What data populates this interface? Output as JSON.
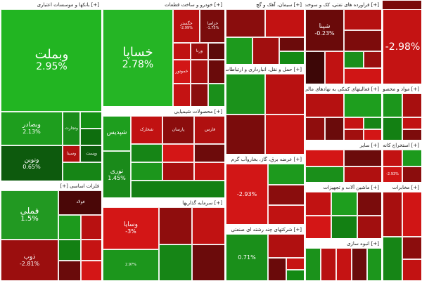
{
  "sectors": [
    {
      "label": "[+] بانکها و موسسات اعتباری",
      "tiles": [
        {
          "name": "وبملت",
          "change": "2.95%",
          "color": "#22b522",
          "size": "xl"
        },
        {
          "name": "وبصادر",
          "change": "2.13%",
          "color": "#1e9e1e",
          "size": "md"
        },
        {
          "name": "وتجارت",
          "change": "",
          "color": "#1a8c1a",
          "size": "sm"
        },
        {
          "name": "",
          "change": "",
          "color": "#149014",
          "size": "sm"
        },
        {
          "name": "",
          "change": "",
          "color": "#0e6e0e",
          "size": "sm"
        },
        {
          "name": "وپست",
          "change": "",
          "color": "#0c5c0c",
          "size": "sm"
        },
        {
          "name": "ونوین",
          "change": "0.65%",
          "color": "#0d5a0d",
          "size": "md"
        },
        {
          "name": "وسینا",
          "change": "",
          "color": "#b01010",
          "size": "sm"
        },
        {
          "name": "",
          "change": "",
          "color": "#168516",
          "size": "sm"
        }
      ]
    },
    {
      "label": "[+] خودرو و ساخت قطعات",
      "tiles": [
        {
          "name": "خساپا",
          "change": "2.78%",
          "color": "#25b525",
          "size": "xl"
        },
        {
          "name": "خگستر",
          "change": "-2.99%",
          "color": "#b81010",
          "size": "sm"
        },
        {
          "name": "خزامیا",
          "change": "-1.75%",
          "color": "#7a0c0c",
          "size": "sm"
        },
        {
          "name": "",
          "change": "",
          "color": "#c01212",
          "size": "sm"
        },
        {
          "name": "ورنا",
          "change": "",
          "color": "#9a0e0e",
          "size": "sm"
        },
        {
          "name": "",
          "change": "",
          "color": "#5c0a0a",
          "size": "sm"
        },
        {
          "name": "خموتور",
          "change": "",
          "color": "#d21616",
          "size": "sm"
        },
        {
          "name": "",
          "change": "",
          "color": "#a80f0f",
          "size": "sm"
        },
        {
          "name": "",
          "change": "",
          "color": "#6a0b0b",
          "size": "sm"
        },
        {
          "name": "",
          "change": "",
          "color": "#c41313",
          "size": "sm"
        },
        {
          "name": "",
          "change": "",
          "color": "#8b0d0d",
          "size": "sm"
        },
        {
          "name": "",
          "change": "",
          "color": "#1a8f1a",
          "size": "sm"
        }
      ]
    },
    {
      "label": "[+] سیمان، آهک و گچ",
      "tiles": [
        {
          "name": "",
          "change": "",
          "color": "#8a0d0d",
          "size": "sm"
        },
        {
          "name": "",
          "change": "",
          "color": "#c21212",
          "size": "sm"
        },
        {
          "name": "",
          "change": "",
          "color": "#1d9a1d",
          "size": "sm"
        },
        {
          "name": "",
          "change": "",
          "color": "#a10f0f",
          "size": "sm"
        },
        {
          "name": "",
          "change": "",
          "color": "#6b0b0b",
          "size": "sm"
        },
        {
          "name": "",
          "change": "",
          "color": "#148a14",
          "size": "sm"
        }
      ]
    },
    {
      "label": "[+] فراورده های نفتی، کک و سوخت هسته ای",
      "tiles": [
        {
          "name": "شپنا",
          "change": "-0.23%",
          "color": "#6a0a0a",
          "size": "md"
        },
        {
          "name": "",
          "change": "",
          "color": "#b51111",
          "size": "sm"
        },
        {
          "name": "",
          "change": "",
          "color": "#7d0c0c",
          "size": "sm"
        },
        {
          "name": "",
          "change": "",
          "color": "#3d0707",
          "size": "sm"
        },
        {
          "name": "",
          "change": "",
          "color": "#c01212",
          "size": "sm"
        },
        {
          "name": "",
          "change": "",
          "color": "#1a8f1a",
          "size": "sm"
        },
        {
          "name": "",
          "change": "",
          "color": "#9a0e0e",
          "size": "sm"
        },
        {
          "name": "",
          "change": "",
          "color": "#d01515",
          "size": "sm"
        }
      ]
    },
    {
      "label": "[+] محصولات شیمیایی",
      "tiles": [
        {
          "name": "شپدیس",
          "change": "",
          "color": "#1e9e1e",
          "size": "md"
        },
        {
          "name": "نوری",
          "change": "1.45%",
          "color": "#1a8a1a",
          "size": "md"
        },
        {
          "name": "شخارک",
          "change": "",
          "color": "#c11212",
          "size": "sm"
        },
        {
          "name": "پارسان",
          "change": "",
          "color": "#8b0d0d",
          "size": "sm"
        },
        {
          "name": "فارس",
          "change": "",
          "color": "#b01010",
          "size": "sm"
        },
        {
          "name": "",
          "change": "",
          "color": "#168516",
          "size": "sm"
        },
        {
          "name": "",
          "change": "",
          "color": "#d41616",
          "size": "sm"
        },
        {
          "name": "",
          "change": "",
          "color": "#6d0b0b",
          "size": "sm"
        },
        {
          "name": "",
          "change": "",
          "color": "#1c961c",
          "size": "sm"
        },
        {
          "name": "",
          "change": "",
          "color": "#a70f0f",
          "size": "sm"
        },
        {
          "name": "",
          "change": "",
          "color": "#c51313",
          "size": "sm"
        },
        {
          "name": "",
          "change": "",
          "color": "#138013",
          "size": "sm"
        }
      ]
    },
    {
      "label": "[+] حمل و نقل، انبارداری و ارتباطات",
      "tiles": [
        {
          "name": "",
          "change": "",
          "color": "#1b921b",
          "size": "sm"
        },
        {
          "name": "",
          "change": "",
          "color": "#b81111",
          "size": "sm"
        },
        {
          "name": "",
          "change": "",
          "color": "#7a0c0c",
          "size": "sm"
        },
        {
          "name": "",
          "change": "",
          "color": "#c71414",
          "size": "sm"
        }
      ]
    },
    {
      "label": "[+] فعالیتهای کمکی به نهادهای مالی",
      "tiles": [
        {
          "name": "",
          "change": "",
          "color": "#b51111",
          "size": "sm"
        },
        {
          "name": "",
          "change": "",
          "color": "#1e9e1e",
          "size": "sm"
        },
        {
          "name": "",
          "change": "",
          "color": "#8f0d0d",
          "size": "sm"
        },
        {
          "name": "",
          "change": "",
          "color": "#6a0b0b",
          "size": "sm"
        },
        {
          "name": "",
          "change": "",
          "color": "#c51313",
          "size": "sm"
        },
        {
          "name": "",
          "change": "",
          "color": "#168516",
          "size": "sm"
        },
        {
          "name": "",
          "change": "",
          "color": "#a10f0f",
          "size": "sm"
        },
        {
          "name": "",
          "change": "",
          "color": "#d31616",
          "size": "sm"
        }
      ]
    },
    {
      "label": "[+] مواد و محصولات دارویی",
      "tiles": [
        {
          "name": "",
          "change": "",
          "color": "#1c961c",
          "size": "sm"
        },
        {
          "name": "",
          "change": "",
          "color": "#a70f0f",
          "size": "sm"
        },
        {
          "name": "",
          "change": "",
          "color": "#138013",
          "size": "sm"
        },
        {
          "name": "",
          "change": "",
          "color": "#c11212",
          "size": "sm"
        },
        {
          "name": "",
          "change": "",
          "color": "#7d0c0c",
          "size": "sm"
        }
      ]
    },
    {
      "label": "[+] سایر",
      "tiles": [
        {
          "name": "",
          "change": "",
          "color": "#d41616",
          "size": "sm"
        },
        {
          "name": "",
          "change": "",
          "color": "#6b0b0b",
          "size": "sm"
        },
        {
          "name": "",
          "change": "",
          "color": "#1a8f1a",
          "size": "sm"
        },
        {
          "name": "",
          "change": "",
          "color": "#b01010",
          "size": "sm"
        }
      ]
    },
    {
      "label": "[+] استخراج کانه های فلزی",
      "tiles": [
        {
          "name": "",
          "change": "",
          "color": "#c21212",
          "size": "sm"
        },
        {
          "name": "",
          "change": "",
          "color": "#1d9a1d",
          "size": "sm"
        },
        {
          "name": "",
          "change": "-2.93%",
          "color": "#d01515",
          "size": "sm"
        },
        {
          "name": "",
          "change": "",
          "color": "#8b0d0d",
          "size": "sm"
        }
      ]
    },
    {
      "label": "فلزات اساسی [+]",
      "tiles": [
        {
          "name": "فملی",
          "change": "1.5%",
          "color": "#229922",
          "size": "lg"
        },
        {
          "name": "فولاد",
          "change": "",
          "color": "#4a0707",
          "size": "sm"
        },
        {
          "name": "ذوب",
          "change": "-2.81%",
          "color": "#9b0e0e",
          "size": "md"
        },
        {
          "name": "",
          "change": "",
          "color": "#1d9a1d",
          "size": "sm"
        },
        {
          "name": "",
          "change": "",
          "color": "#b81111",
          "size": "sm"
        },
        {
          "name": "",
          "change": "",
          "color": "#138013",
          "size": "sm"
        },
        {
          "name": "",
          "change": "",
          "color": "#c51313",
          "size": "sm"
        },
        {
          "name": "",
          "change": "",
          "color": "#6a0b0b",
          "size": "sm"
        },
        {
          "name": "",
          "change": "",
          "color": "#d41616",
          "size": "sm"
        },
        {
          "name": "",
          "change": "",
          "color": "#1b921b",
          "size": "sm"
        }
      ]
    },
    {
      "label": "[+] سرمایه گذاریها",
      "tiles": [
        {
          "name": "وسایا",
          "change": "-3%",
          "color": "#d31616",
          "size": "md"
        },
        {
          "name": "",
          "change": "2.97%",
          "color": "#1c961c",
          "size": "sm"
        },
        {
          "name": "",
          "change": "",
          "color": "#8f0d0d",
          "size": "sm"
        },
        {
          "name": "",
          "change": "",
          "color": "#c11212",
          "size": "sm"
        },
        {
          "name": "",
          "change": "",
          "color": "#168516",
          "size": "sm"
        },
        {
          "name": "",
          "change": "",
          "color": "#6b0b0b",
          "size": "sm"
        }
      ]
    },
    {
      "label": "[+] عرضه برق، گاز، بخاروآب گرم",
      "tiles": [
        {
          "name": "",
          "change": "-2.93%",
          "color": "#d21616",
          "size": "md"
        },
        {
          "name": "",
          "change": "",
          "color": "#1d9a1d",
          "size": "sm"
        },
        {
          "name": "",
          "change": "",
          "color": "#8a0d0d",
          "size": "sm"
        },
        {
          "name": "",
          "change": "",
          "color": "#c01212",
          "size": "sm"
        }
      ]
    },
    {
      "label": "[+] شرکتهای چند رشته ای صنعتی",
      "tiles": [
        {
          "name": "",
          "change": "0.71%",
          "color": "#1a8f1a",
          "size": "md"
        },
        {
          "name": "",
          "change": "",
          "color": "#b01010",
          "size": "sm"
        },
        {
          "name": "",
          "change": "",
          "color": "#6a0a0a",
          "size": "sm"
        },
        {
          "name": "",
          "change": "",
          "color": "#c71414",
          "size": "sm"
        },
        {
          "name": "",
          "change": "",
          "color": "#148a14",
          "size": "sm"
        }
      ]
    },
    {
      "label": "[+] ماشین آلات و تجهیزات",
      "tiles": [
        {
          "name": "",
          "change": "",
          "color": "#c11212",
          "size": "sm"
        },
        {
          "name": "",
          "change": "",
          "color": "#1e9e1e",
          "size": "sm"
        },
        {
          "name": "",
          "change": "",
          "color": "#7a0c0c",
          "size": "sm"
        },
        {
          "name": "",
          "change": "",
          "color": "#d41616",
          "size": "sm"
        },
        {
          "name": "",
          "change": "",
          "color": "#138013",
          "size": "sm"
        },
        {
          "name": "",
          "change": "",
          "color": "#a10f0f",
          "size": "sm"
        }
      ]
    },
    {
      "label": "[+] انبوه سازی",
      "tiles": [
        {
          "name": "",
          "change": "",
          "color": "#1b921b",
          "size": "sm"
        },
        {
          "name": "",
          "change": "",
          "color": "#b81111",
          "size": "sm"
        },
        {
          "name": "",
          "change": "",
          "color": "#c51313",
          "size": "sm"
        },
        {
          "name": "",
          "change": "",
          "color": "#6b0b0b",
          "size": "sm"
        },
        {
          "name": "",
          "change": "",
          "color": "#1c961c",
          "size": "sm"
        }
      ]
    },
    {
      "label": "[+] مخابرات",
      "tiles": [
        {
          "name": "",
          "change": "",
          "color": "#a70f0f",
          "size": "sm"
        },
        {
          "name": "",
          "change": "",
          "color": "#d01515",
          "size": "sm"
        },
        {
          "name": "",
          "change": "",
          "color": "#168516",
          "size": "sm"
        },
        {
          "name": "",
          "change": "",
          "color": "#8b0d0d",
          "size": "sm"
        },
        {
          "name": "",
          "change": "",
          "color": "#c21212",
          "size": "sm"
        }
      ]
    },
    {
      "label": "",
      "tiles": [
        {
          "name": "",
          "change": "-2.98%",
          "color": "#c41313",
          "size": "xl"
        }
      ]
    }
  ]
}
